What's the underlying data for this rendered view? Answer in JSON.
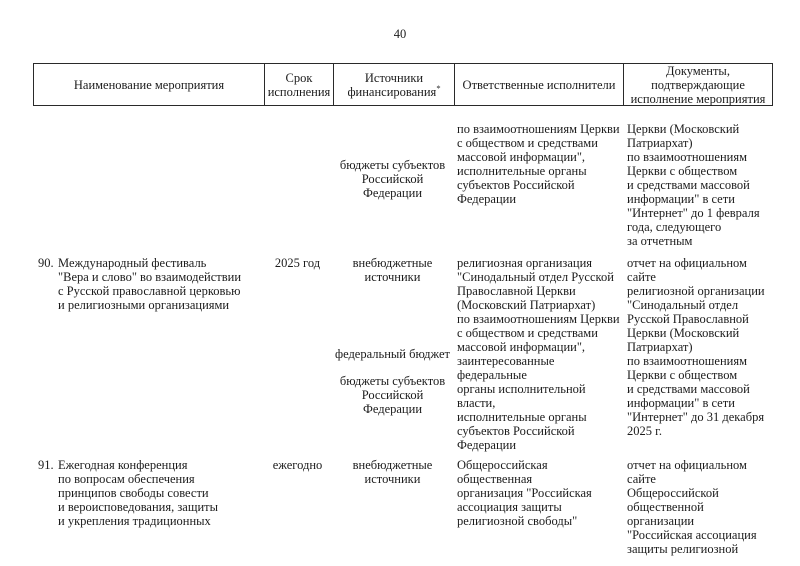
{
  "page": {
    "number": "40"
  },
  "table": {
    "header": {
      "columns": [
        {
          "label": "Наименование мероприятия",
          "sup": ""
        },
        {
          "label": "Срок\nисполнения",
          "sup": ""
        },
        {
          "label": "Источники\nфинансирования",
          "sup": "*"
        },
        {
          "label": "Ответственные исполнители",
          "sup": ""
        },
        {
          "label": "Документы,\nподтверждающие\nисполнение мероприятия",
          "sup": ""
        }
      ]
    },
    "rows": [
      {
        "number": "",
        "name": "",
        "term": "",
        "sources": [
          "бюджеты субъектов\nРоссийской\nФедерации"
        ],
        "executors": "по взаимоотношениям Церкви\nс обществом и средствами\nмассовой информации\",\nисполнительные органы\nсубъектов Российской\nФедерации",
        "documents": "Церкви (Московский\nПатриархат)\nпо взаимоотношениям\nЦеркви с обществом\nи средствами массовой\nинформации\" в сети\n\"Интернет\" до 1 февраля\nгода, следующего\nза отчетным"
      },
      {
        "number": "90.",
        "name": "Международный фестиваль\n\"Вера и слово\" во взаимодействии\nс Русской православной церковью\nи религиозными организациями",
        "term": "2025 год",
        "sources": [
          "внебюджетные\nисточники",
          "федеральный бюджет",
          "бюджеты субъектов\nРоссийской\nФедерации"
        ],
        "executors": "религиозная организация\n\"Синодальный отдел Русской\nПравославной Церкви\n(Московский Патриархат)\nпо взаимоотношениям Церкви\nс обществом и средствами\nмассовой информации\",\nзаинтересованные федеральные\nорганы исполнительной власти,\nисполнительные органы\nсубъектов Российской\nФедерации",
        "documents": "отчет на официальном сайте\nрелигиозной организации\n\"Синодальный отдел\nРусской Православной\nЦеркви (Московский\nПатриархат)\nпо взаимоотношениям\nЦеркви с обществом\nи средствами массовой\nинформации\" в сети\n\"Интернет\" до 31 декабря\n2025 г."
      },
      {
        "number": "91.",
        "name": "Ежегодная конференция\nпо вопросам обеспечения\nпринципов свободы совести\nи вероисповедования, защиты\nи укрепления традиционных",
        "term": "ежегодно",
        "sources": [
          "внебюджетные\nисточники"
        ],
        "executors": "Общероссийская общественная\nорганизация \"Российская\nассоциация защиты\nрелигиозной свободы\"",
        "documents": "отчет на официальном сайте\nОбщероссийской\nобщественной организации\n\"Российская ассоциация\nзащиты религиозной"
      }
    ]
  }
}
